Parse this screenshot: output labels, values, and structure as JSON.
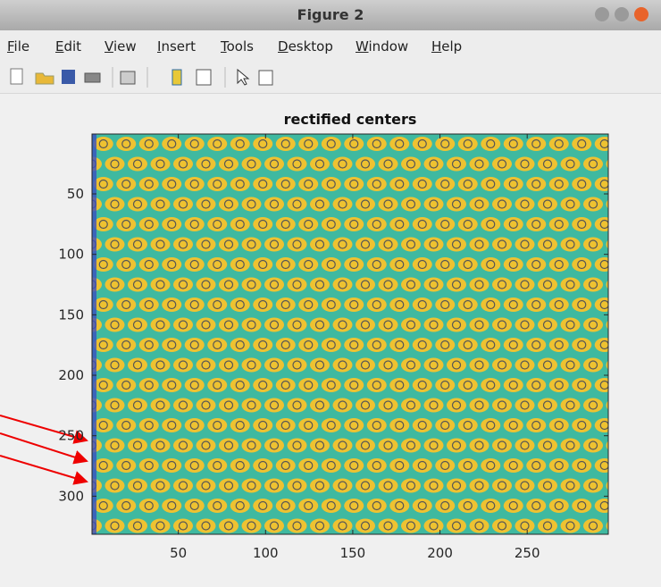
{
  "window": {
    "title": "Figure 2",
    "menu": [
      "File",
      "Edit",
      "View",
      "Insert",
      "Tools",
      "Desktop",
      "Window",
      "Help"
    ]
  },
  "chart_data": {
    "type": "image",
    "title": "rectified centers",
    "xlim": [
      0.5,
      296.5
    ],
    "ylim": [
      0.5,
      331.5
    ],
    "y_reversed": true,
    "xticks": [
      50,
      100,
      150,
      200,
      250
    ],
    "yticks": [
      50,
      100,
      150,
      200,
      250,
      300
    ]
  }
}
